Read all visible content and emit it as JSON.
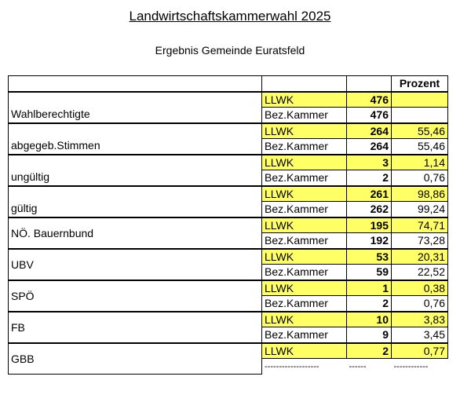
{
  "title": "Landwirtschaftskammerwahl 2025",
  "subtitle": "Ergebnis Gemeinde Euratsfeld",
  "header": {
    "percent": "Prozent"
  },
  "groups": [
    {
      "label": "Wahlberechtigte",
      "rows": [
        {
          "type": "LLWK",
          "value": "476",
          "pct": ""
        },
        {
          "type": "Bez.Kammer",
          "value": "476",
          "pct": ""
        }
      ]
    },
    {
      "label": "abgegeb.Stimmen",
      "rows": [
        {
          "type": "LLWK",
          "value": "264",
          "pct": "55,46"
        },
        {
          "type": "Bez.Kammer",
          "value": "264",
          "pct": "55,46"
        }
      ]
    },
    {
      "label": "ungültig",
      "rows": [
        {
          "type": "LLWK",
          "value": "3",
          "pct": "1,14"
        },
        {
          "type": "Bez.Kammer",
          "value": "2",
          "pct": "0,76"
        }
      ]
    },
    {
      "label": "gültig",
      "rows": [
        {
          "type": "LLWK",
          "value": "261",
          "pct": "98,86"
        },
        {
          "type": "Bez.Kammer",
          "value": "262",
          "pct": "99,24"
        }
      ]
    },
    {
      "label": "NÖ. Bauernbund",
      "rows": [
        {
          "type": "LLWK",
          "value": "195",
          "pct": "74,71"
        },
        {
          "type": "Bez.Kammer",
          "value": "192",
          "pct": "73,28"
        }
      ]
    },
    {
      "label": "UBV",
      "rows": [
        {
          "type": "LLWK",
          "value": "53",
          "pct": "20,31"
        },
        {
          "type": "Bez.Kammer",
          "value": "59",
          "pct": "22,52"
        }
      ]
    },
    {
      "label": "SPÖ",
      "rows": [
        {
          "type": "LLWK",
          "value": "1",
          "pct": "0,38"
        },
        {
          "type": "Bez.Kammer",
          "value": "2",
          "pct": "0,76"
        }
      ]
    },
    {
      "label": "FB",
      "rows": [
        {
          "type": "LLWK",
          "value": "10",
          "pct": "3,83"
        },
        {
          "type": "Bez.Kammer",
          "value": "9",
          "pct": "3,45"
        }
      ]
    },
    {
      "label": "GBB",
      "rows": [
        {
          "type": "LLWK",
          "value": "2",
          "pct": "0,77"
        }
      ]
    }
  ],
  "footer": {
    "type_dash": "-------------------",
    "value_dash": "------",
    "pct_dash": "------------"
  },
  "colors": {
    "highlight": "#ffff66",
    "border": "#000000"
  }
}
